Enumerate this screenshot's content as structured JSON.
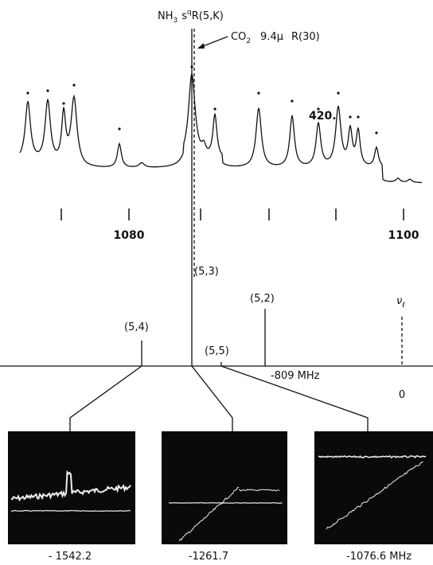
{
  "header": {
    "molecule": "NH",
    "molecule_sub": "3",
    "branch_prefix": "s",
    "branch_sup": "q",
    "branch": "R(5,K)"
  },
  "laser": {
    "name": "CO",
    "name_sub": "2",
    "wavelength": "9.4μ",
    "line": "R(30)"
  },
  "spectrum": {
    "peak_label": "420.",
    "ticks": [
      "1080",
      "1100"
    ]
  },
  "sticks": {
    "labels": [
      "(5,3)",
      "(5,2)",
      "(5,4)",
      "(5,5)"
    ],
    "offset": "-809 MHz",
    "laser_symbol": "ν",
    "laser_sub": "ℓ",
    "zero": "0"
  },
  "insets": {
    "labels": [
      "- 1542.2",
      "-1261.7",
      "-1076.6 MHz"
    ]
  }
}
